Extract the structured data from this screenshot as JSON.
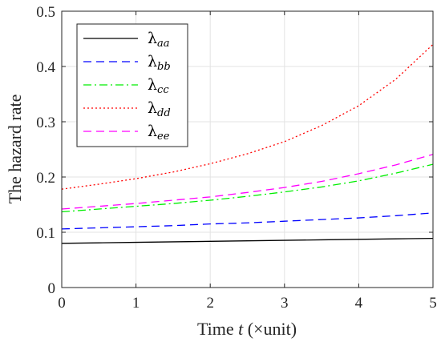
{
  "chart_data": {
    "type": "line",
    "xlabel": "Time t (×unit)",
    "xlabel_parts": {
      "prefix": "Time ",
      "var": "t",
      "suffix": " (×unit)"
    },
    "ylabel": "The hazard rate",
    "xlim": [
      0,
      5
    ],
    "ylim": [
      0,
      0.5
    ],
    "xticks": [
      "0",
      "1",
      "2",
      "3",
      "4",
      "5"
    ],
    "yticks": [
      "0",
      "0.1",
      "0.2",
      "0.3",
      "0.4",
      "0.5"
    ],
    "grid": true,
    "legend_position": "top-left",
    "x": [
      0,
      0.5,
      1,
      1.5,
      2,
      2.5,
      3,
      3.5,
      4,
      4.5,
      5
    ],
    "series": [
      {
        "name": "λaa",
        "symbol": "λ",
        "sub": "aa",
        "color": "#000000",
        "dash": "solid",
        "values": [
          0.08,
          0.0809,
          0.0818,
          0.0827,
          0.0836,
          0.0845,
          0.0854,
          0.0863,
          0.0872,
          0.0881,
          0.089
        ]
      },
      {
        "name": "λbb",
        "symbol": "λ",
        "sub": "bb",
        "color": "#0000ff",
        "dash": "dashed",
        "values": [
          0.106,
          0.108,
          0.11,
          0.112,
          0.115,
          0.117,
          0.12,
          0.123,
          0.126,
          0.13,
          0.135
        ]
      },
      {
        "name": "λcc",
        "symbol": "λ",
        "sub": "cc",
        "color": "#00ee00",
        "dash": "dashdot",
        "values": [
          0.137,
          0.142,
          0.147,
          0.152,
          0.158,
          0.165,
          0.173,
          0.182,
          0.193,
          0.207,
          0.223
        ]
      },
      {
        "name": "λdd",
        "symbol": "λ",
        "sub": "dd",
        "color": "#ff0000",
        "dash": "dotted",
        "values": [
          0.178,
          0.187,
          0.197,
          0.209,
          0.224,
          0.242,
          0.264,
          0.293,
          0.329,
          0.377,
          0.44
        ]
      },
      {
        "name": "λee",
        "symbol": "λ",
        "sub": "ee",
        "color": "#ff00ff",
        "dash": "dashed",
        "values": [
          0.142,
          0.147,
          0.152,
          0.158,
          0.164,
          0.172,
          0.181,
          0.192,
          0.206,
          0.222,
          0.241
        ]
      }
    ]
  }
}
